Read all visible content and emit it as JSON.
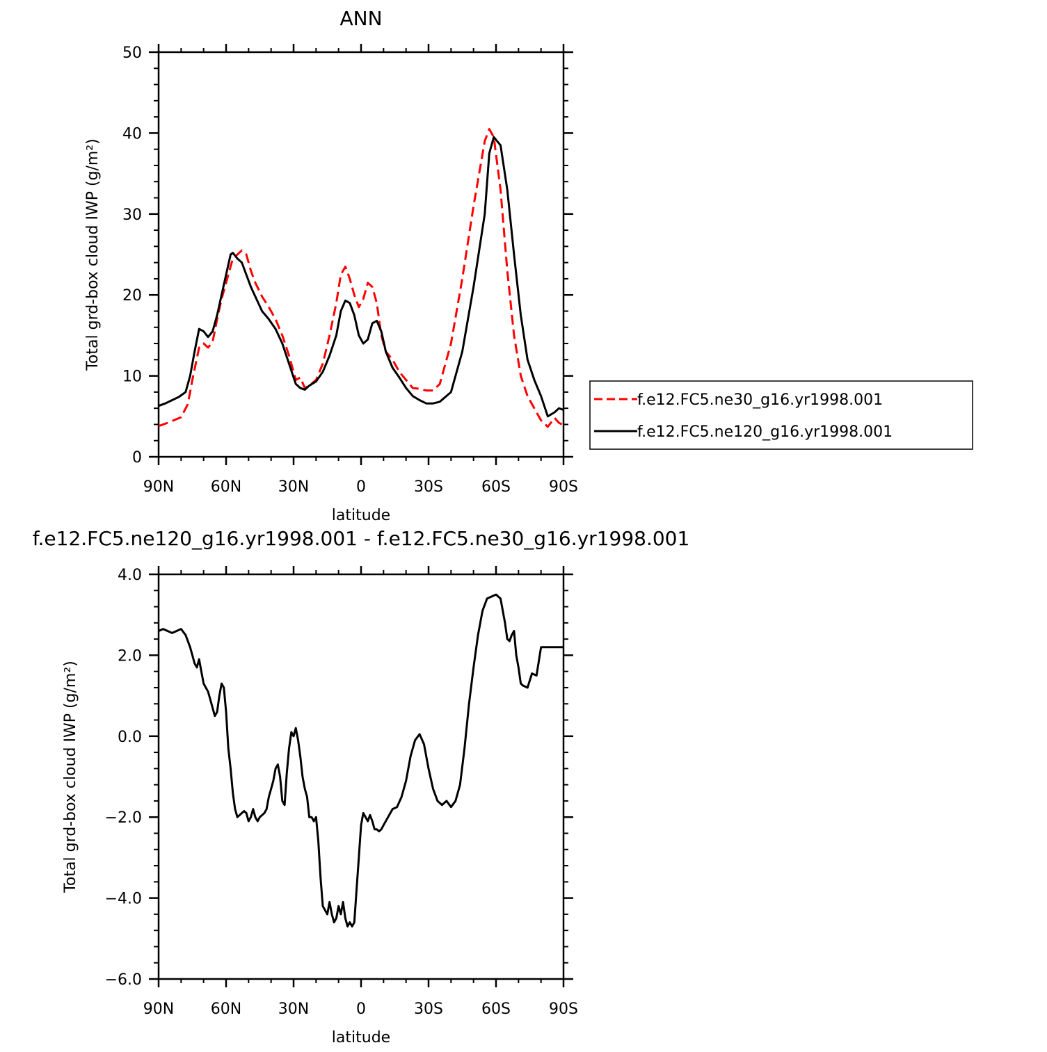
{
  "chart_data": [
    {
      "type": "line",
      "title": "ANN",
      "xlabel": "latitude",
      "ylabel": "Total grd-box cloud IWP (g/m²)",
      "xlim": [
        90,
        -90
      ],
      "ylim": [
        0,
        50
      ],
      "x_ticks": [
        90,
        60,
        30,
        0,
        -30,
        -60,
        -90
      ],
      "x_tick_labels": [
        "90N",
        "60N",
        "30N",
        "0",
        "30S",
        "60S",
        "90S"
      ],
      "y_ticks": [
        0,
        10,
        20,
        30,
        40,
        50
      ],
      "y_tick_labels": [
        "0",
        "10",
        "20",
        "30",
        "40",
        "50"
      ],
      "legend": "right",
      "series": [
        {
          "name": "f.e12.FC5.ne30_g16.yr1998.001",
          "color": "#ff0000",
          "dash": "dashed",
          "x": [
            90,
            85,
            80,
            77,
            75,
            72,
            70,
            68,
            66,
            64,
            62,
            60,
            57,
            55,
            53,
            51,
            49,
            47,
            44,
            41,
            38,
            35,
            32,
            29,
            27,
            25,
            23,
            20,
            17,
            14,
            11,
            9,
            7,
            5,
            3,
            1,
            -1,
            -3,
            -5,
            -7,
            -9,
            -11,
            -14,
            -17,
            -20,
            -23,
            -26,
            -29,
            -32,
            -35,
            -40,
            -45,
            -50,
            -55,
            -57,
            -59,
            -62,
            -65,
            -68,
            -71,
            -74,
            -77,
            -80,
            -83,
            -86,
            -88,
            -90
          ],
          "y": [
            3.8,
            4.3,
            4.9,
            6.5,
            9.5,
            13.5,
            14.0,
            13.5,
            14.2,
            17.0,
            19.5,
            21.5,
            24.5,
            25.0,
            25.5,
            25.0,
            23.0,
            21.5,
            19.8,
            18.5,
            17.0,
            15.0,
            12.5,
            9.5,
            9.8,
            8.5,
            8.8,
            9.5,
            11.5,
            15.0,
            19.0,
            22.5,
            23.5,
            22.0,
            20.0,
            18.5,
            19.5,
            21.5,
            21.0,
            19.0,
            15.0,
            13.0,
            12.0,
            10.5,
            9.5,
            8.5,
            8.4,
            8.2,
            8.2,
            9.0,
            14.0,
            22.0,
            31.0,
            39.0,
            40.5,
            39.5,
            33.0,
            23.0,
            15.0,
            10.0,
            7.5,
            6.0,
            4.5,
            3.7,
            4.8,
            4.2,
            3.9
          ]
        },
        {
          "name": "f.e12.FC5.ne120_g16.yr1998.001",
          "color": "#000000",
          "dash": "solid",
          "x": [
            90,
            87,
            84,
            81,
            78,
            76,
            74,
            72,
            70,
            68,
            66,
            64,
            62,
            60,
            58,
            57,
            55,
            53,
            51,
            49,
            47,
            44,
            41,
            38,
            35,
            32,
            29,
            27,
            25,
            23,
            20,
            17,
            14,
            11,
            9,
            7,
            5,
            3,
            1,
            -1,
            -3,
            -5,
            -7,
            -9,
            -11,
            -14,
            -17,
            -20,
            -23,
            -26,
            -29,
            -32,
            -35,
            -40,
            -45,
            -50,
            -55,
            -57,
            -59,
            -62,
            -65,
            -68,
            -71,
            -74,
            -77,
            -80,
            -83,
            -86,
            -88,
            -90
          ],
          "y": [
            6.3,
            6.6,
            7.0,
            7.4,
            8.0,
            10.0,
            13.0,
            15.8,
            15.5,
            14.8,
            15.5,
            17.5,
            20.0,
            22.5,
            25.0,
            25.2,
            24.5,
            24.0,
            22.5,
            21.0,
            19.8,
            18.0,
            17.0,
            15.8,
            14.0,
            11.5,
            9.0,
            8.5,
            8.3,
            8.8,
            9.3,
            10.5,
            12.5,
            15.0,
            18.0,
            19.3,
            19.0,
            17.5,
            15.0,
            14.0,
            14.5,
            16.5,
            16.8,
            15.5,
            13.0,
            11.0,
            9.8,
            8.5,
            7.5,
            7.0,
            6.6,
            6.6,
            6.8,
            8.0,
            13.0,
            21.0,
            30.0,
            37.5,
            39.5,
            38.5,
            33.0,
            25.0,
            17.5,
            12.0,
            9.5,
            7.5,
            5.0,
            5.5,
            6.0,
            5.8
          ]
        }
      ]
    },
    {
      "type": "line",
      "title": "f.e12.FC5.ne120_g16.yr1998.001 - f.e12.FC5.ne30_g16.yr1998.001",
      "xlabel": "latitude",
      "ylabel": "Total grd-box cloud IWP (g/m²)",
      "xlim": [
        90,
        -90
      ],
      "ylim": [
        -6.0,
        4.0
      ],
      "x_ticks": [
        90,
        60,
        30,
        0,
        -30,
        -60,
        -90
      ],
      "x_tick_labels": [
        "90N",
        "60N",
        "30N",
        "0",
        "30S",
        "60S",
        "90S"
      ],
      "y_ticks": [
        -6.0,
        -4.0,
        -2.0,
        0.0,
        2.0,
        4.0
      ],
      "y_tick_labels": [
        "−6.0",
        "−4.0",
        "−2.0",
        "0.0",
        "2.0",
        "4.0"
      ],
      "series": [
        {
          "name": "",
          "color": "#000000",
          "dash": "solid",
          "x": [
            90,
            88,
            86,
            84,
            82,
            80,
            78,
            76,
            74,
            73,
            72,
            71,
            70,
            69,
            68,
            67,
            66,
            65,
            64,
            63,
            62,
            61,
            60,
            59,
            58,
            57,
            56,
            55,
            54,
            53,
            52,
            51,
            50,
            49,
            48,
            47,
            46,
            45,
            44,
            43,
            42,
            41,
            40,
            39,
            38,
            37,
            36,
            35,
            34,
            33,
            32,
            31,
            30,
            29,
            28,
            27,
            26,
            25,
            24,
            23,
            22,
            21,
            20,
            19,
            18,
            17,
            16,
            15,
            14,
            13,
            12,
            11,
            10,
            9,
            8,
            7,
            6,
            5,
            4,
            3,
            2,
            1,
            0,
            -1,
            -2,
            -3,
            -4,
            -5,
            -6,
            -7,
            -8,
            -9,
            -10,
            -12,
            -14,
            -16,
            -18,
            -20,
            -22,
            -24,
            -26,
            -28,
            -30,
            -32,
            -34,
            -36,
            -38,
            -40,
            -42,
            -44,
            -46,
            -48,
            -50,
            -52,
            -54,
            -56,
            -58,
            -60,
            -62,
            -64,
            -65,
            -66,
            -67,
            -68,
            -69,
            -70,
            -71,
            -72,
            -74,
            -76,
            -78,
            -80,
            -82,
            -84,
            -86,
            -88,
            -90
          ],
          "y": [
            2.6,
            2.65,
            2.6,
            2.55,
            2.6,
            2.65,
            2.5,
            2.2,
            1.8,
            1.7,
            1.9,
            1.6,
            1.3,
            1.2,
            1.1,
            0.9,
            0.7,
            0.5,
            0.6,
            1.0,
            1.3,
            1.2,
            0.6,
            -0.3,
            -0.8,
            -1.4,
            -1.8,
            -2.0,
            -1.95,
            -1.9,
            -1.85,
            -1.9,
            -2.1,
            -2.0,
            -1.8,
            -2.0,
            -2.1,
            -2.0,
            -1.95,
            -1.9,
            -1.8,
            -1.5,
            -1.3,
            -1.1,
            -0.8,
            -0.7,
            -1.0,
            -1.6,
            -1.7,
            -0.9,
            -0.3,
            0.1,
            0.0,
            0.2,
            -0.1,
            -0.5,
            -1.0,
            -1.3,
            -1.5,
            -2.0,
            -2.0,
            -2.1,
            -2.0,
            -2.6,
            -3.5,
            -4.2,
            -4.3,
            -4.4,
            -4.1,
            -4.4,
            -4.6,
            -4.5,
            -4.2,
            -4.4,
            -4.1,
            -4.5,
            -4.7,
            -4.6,
            -4.7,
            -4.6,
            -3.8,
            -3.0,
            -2.2,
            -1.9,
            -2.0,
            -2.1,
            -1.95,
            -2.1,
            -2.3,
            -2.3,
            -2.35,
            -2.3,
            -2.2,
            -2.0,
            -1.8,
            -1.75,
            -1.5,
            -1.1,
            -0.5,
            -0.1,
            0.05,
            -0.2,
            -0.8,
            -1.3,
            -1.6,
            -1.7,
            -1.6,
            -1.75,
            -1.6,
            -1.2,
            -0.3,
            0.8,
            1.7,
            2.5,
            3.1,
            3.4,
            3.45,
            3.5,
            3.4,
            2.8,
            2.4,
            2.35,
            2.5,
            2.6,
            2.0,
            1.7,
            1.3,
            1.25,
            1.2,
            1.55,
            1.5,
            2.2,
            2.2,
            2.2,
            2.2,
            2.2,
            2.2
          ]
        }
      ]
    }
  ]
}
